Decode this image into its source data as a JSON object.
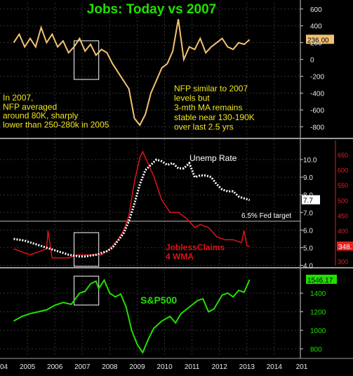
{
  "colors": {
    "nfp": "#f3c271",
    "title": "#22e000",
    "annotation": "#f2e61a",
    "unemp": "#ffffff",
    "claims": "#e0121a",
    "claims_axis": "#e62020",
    "spx": "#22e000",
    "axis_text": "#e8e8e8",
    "grid": "#333333",
    "divider": "#9a9a9a",
    "fed_line": "#bbbbbb"
  },
  "chart_data": [
    {
      "type": "line",
      "title": "Jobs: Today vs 2007",
      "series": [
        {
          "name": "",
          "x": [
            2004.5,
            2004.7,
            2004.9,
            2005.1,
            2005.3,
            2005.5,
            2005.7,
            2005.9,
            2006.1,
            2006.3,
            2006.5,
            2006.7,
            2006.9,
            2007.1,
            2007.3,
            2007.5,
            2007.7,
            2007.9,
            2008.1,
            2008.3,
            2008.5,
            2008.7,
            2008.9,
            2009.1,
            2009.3,
            2009.5,
            2009.7,
            2009.9,
            2010.1,
            2010.3,
            2010.5,
            2010.7,
            2010.9,
            2011.1,
            2011.3,
            2011.5,
            2011.7,
            2011.9,
            2012.1,
            2012.3,
            2012.5,
            2012.7,
            2012.9,
            2013.1
          ],
          "values": [
            200,
            300,
            150,
            250,
            150,
            380,
            200,
            300,
            150,
            220,
            80,
            150,
            250,
            100,
            180,
            50,
            120,
            80,
            -50,
            -150,
            -250,
            -350,
            -700,
            -780,
            -650,
            -400,
            -250,
            -100,
            -50,
            100,
            480,
            0,
            150,
            120,
            250,
            80,
            150,
            200,
            250,
            150,
            120,
            200,
            180,
            236
          ]
        }
      ],
      "ylim": [
        -880,
        640
      ],
      "yticks": [
        -800,
        -600,
        -400,
        -200,
        0,
        200,
        400,
        600
      ],
      "last_value_label": "236.00",
      "highlight_box": [
        2006.7,
        2007.6
      ],
      "annotations": {
        "left": [
          "In 2007,",
          "NFP averaged",
          "around 80K, sharply",
          "lower than 250-280k in 2005"
        ],
        "right": [
          "NFP similar to 2007",
          "levels but",
          "3-mth MA remains",
          "stable near 130-190K",
          "over last 2.5 yrs"
        ]
      }
    },
    {
      "type": "line",
      "series": [
        {
          "name": "Unemp Rate",
          "x": [
            2004.5,
            2004.9,
            2005.3,
            2005.7,
            2006.1,
            2006.5,
            2006.9,
            2007.1,
            2007.5,
            2007.9,
            2008.1,
            2008.3,
            2008.5,
            2008.7,
            2008.9,
            2009.1,
            2009.3,
            2009.5,
            2009.7,
            2009.9,
            2010.1,
            2010.3,
            2010.5,
            2010.7,
            2010.9,
            2011.1,
            2011.3,
            2011.5,
            2011.7,
            2011.9,
            2012.1,
            2012.3,
            2012.5,
            2012.7,
            2012.9,
            2013.1
          ],
          "values": [
            5.5,
            5.4,
            5.2,
            5.0,
            4.8,
            4.6,
            4.5,
            4.5,
            4.6,
            4.8,
            5.0,
            5.4,
            5.8,
            6.5,
            7.5,
            8.6,
            9.4,
            9.7,
            10.0,
            9.9,
            9.7,
            9.8,
            9.5,
            9.5,
            9.8,
            9.0,
            9.1,
            9.1,
            9.0,
            8.6,
            8.3,
            8.2,
            8.2,
            7.9,
            7.8,
            7.7
          ]
        },
        {
          "name": "JoblessClaims 4 WMA",
          "x": [
            2004.5,
            2004.8,
            2005.1,
            2005.4,
            2005.7,
            2005.75,
            2005.9,
            2006.2,
            2006.5,
            2006.8,
            2007.1,
            2007.4,
            2007.7,
            2008.0,
            2008.3,
            2008.5,
            2008.7,
            2008.9,
            2009.1,
            2009.2,
            2009.4,
            2009.6,
            2009.9,
            2010.2,
            2010.5,
            2010.8,
            2011.1,
            2011.3,
            2011.6,
            2011.9,
            2012.2,
            2012.5,
            2012.8,
            2012.9,
            2013.0,
            2013.1
          ],
          "values": [
            340,
            330,
            320,
            330,
            340,
            400,
            310,
            310,
            310,
            320,
            320,
            320,
            320,
            340,
            370,
            400,
            450,
            560,
            640,
            660,
            620,
            580,
            500,
            460,
            460,
            440,
            410,
            420,
            410,
            380,
            370,
            370,
            360,
            400,
            350,
            348
          ]
        }
      ],
      "y_left_ticks": [
        4.0,
        5.0,
        6.0,
        7.0,
        8.0,
        9.0,
        10.0
      ],
      "y_left_range": [
        3.9,
        10.8
      ],
      "y_right_ticks": [
        300,
        350,
        400,
        450,
        500,
        550,
        600,
        650
      ],
      "y_right_range": [
        280,
        680
      ],
      "last_value_left": "7.7",
      "last_value_right": "348.",
      "reference_line": {
        "value": 6.5,
        "label": "6.5% Fed target"
      },
      "highlight_box": [
        2006.7,
        2007.6
      ],
      "legend_labels": {
        "unemp": "Unemp Rate",
        "claims_line1": "JoblessClaims",
        "claims_line2": "4 WMA"
      }
    },
    {
      "type": "line",
      "series": [
        {
          "name": "S&P500",
          "x": [
            2004.5,
            2004.8,
            2005.1,
            2005.4,
            2005.7,
            2006.0,
            2006.3,
            2006.6,
            2006.9,
            2007.1,
            2007.3,
            2007.5,
            2007.6,
            2007.8,
            2008.0,
            2008.2,
            2008.4,
            2008.6,
            2008.8,
            2009.0,
            2009.2,
            2009.4,
            2009.6,
            2009.9,
            2010.2,
            2010.4,
            2010.6,
            2010.9,
            2011.2,
            2011.4,
            2011.6,
            2011.8,
            2012.1,
            2012.3,
            2012.5,
            2012.7,
            2012.9,
            2013.1
          ],
          "values": [
            1100,
            1150,
            1180,
            1200,
            1220,
            1270,
            1300,
            1280,
            1400,
            1420,
            1500,
            1530,
            1450,
            1540,
            1400,
            1360,
            1390,
            1250,
            1000,
            850,
            760,
            900,
            1020,
            1100,
            1150,
            1080,
            1180,
            1250,
            1320,
            1340,
            1200,
            1230,
            1380,
            1400,
            1360,
            1430,
            1410,
            1546
          ]
        }
      ],
      "ylim": [
        720,
        1560
      ],
      "yticks": [
        800,
        1000,
        1200,
        1400
      ],
      "last_value_label": "1546.17",
      "highlight_box": [
        2006.7,
        2007.6
      ],
      "label": "S&P500"
    }
  ],
  "x_axis": {
    "range": [
      2004.0,
      2014.95
    ],
    "labels": [
      "04",
      "2005",
      "2006",
      "2007",
      "2008",
      "2009",
      "2010",
      "2011",
      "2012",
      "2013",
      "2014",
      "201"
    ],
    "label_x": [
      2004.0,
      2005.0,
      2006.0,
      2007.0,
      2008.0,
      2009.0,
      2010.0,
      2011.0,
      2012.0,
      2013.0,
      2014.0,
      2015.0
    ]
  }
}
